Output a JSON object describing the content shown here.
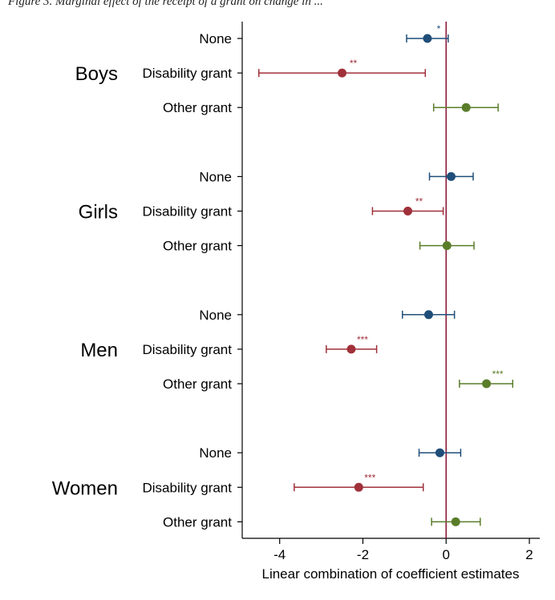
{
  "caption": "Figure 3. Marginal effect of the receipt of a grant on change in ...",
  "chart_data": {
    "type": "scatter",
    "subtype": "coefficient-plot-with-confidence-intervals",
    "xlabel": "Linear combination of coefficient estimates",
    "xlim": [
      -4.9,
      2.25
    ],
    "xticks": [
      -4,
      -2,
      0,
      2
    ],
    "reference_line": 0,
    "grid": false,
    "colors": {
      "None": "#1f4e79",
      "Disability grant": "#a0303a",
      "Other grant": "#5a7d2a",
      "reference_line": "#8b1a3a"
    },
    "groups": [
      {
        "name": "Boys",
        "rows": [
          {
            "label": "None",
            "estimate": -0.45,
            "ci_low": -0.95,
            "ci_high": 0.05,
            "sig": "*"
          },
          {
            "label": "Disability grant",
            "estimate": -2.5,
            "ci_low": -4.5,
            "ci_high": -0.5,
            "sig": "**"
          },
          {
            "label": "Other grant",
            "estimate": 0.48,
            "ci_low": -0.3,
            "ci_high": 1.25,
            "sig": ""
          }
        ]
      },
      {
        "name": "Girls",
        "rows": [
          {
            "label": "None",
            "estimate": 0.12,
            "ci_low": -0.4,
            "ci_high": 0.65,
            "sig": ""
          },
          {
            "label": "Disability grant",
            "estimate": -0.92,
            "ci_low": -1.77,
            "ci_high": -0.07,
            "sig": "**"
          },
          {
            "label": "Other grant",
            "estimate": 0.02,
            "ci_low": -0.63,
            "ci_high": 0.67,
            "sig": ""
          }
        ]
      },
      {
        "name": "Men",
        "rows": [
          {
            "label": "None",
            "estimate": -0.42,
            "ci_low": -1.05,
            "ci_high": 0.2,
            "sig": ""
          },
          {
            "label": "Disability grant",
            "estimate": -2.28,
            "ci_low": -2.88,
            "ci_high": -1.67,
            "sig": "***"
          },
          {
            "label": "Other grant",
            "estimate": 0.97,
            "ci_low": 0.32,
            "ci_high": 1.6,
            "sig": "***"
          }
        ]
      },
      {
        "name": "Women",
        "rows": [
          {
            "label": "None",
            "estimate": -0.15,
            "ci_low": -0.65,
            "ci_high": 0.35,
            "sig": ""
          },
          {
            "label": "Disability grant",
            "estimate": -2.1,
            "ci_low": -3.65,
            "ci_high": -0.55,
            "sig": "***"
          },
          {
            "label": "Other grant",
            "estimate": 0.23,
            "ci_low": -0.35,
            "ci_high": 0.82,
            "sig": ""
          }
        ]
      }
    ]
  }
}
